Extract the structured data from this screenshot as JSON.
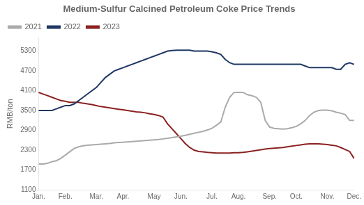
{
  "chart_data": {
    "type": "line",
    "title": "Medium-Sulfur Calcined Petroleum Coke Price Trends",
    "y_label": "RMB/ton",
    "categories": [
      "Jan.",
      null,
      null,
      null,
      null,
      null,
      "Feb.",
      null,
      null,
      null,
      null,
      null,
      null,
      "Mar.",
      null,
      null,
      null,
      null,
      null,
      "Apr.",
      null,
      null,
      null,
      null,
      null,
      null,
      "May",
      null,
      null,
      null,
      null,
      null,
      "Jun.",
      null,
      null,
      null,
      null,
      null,
      null,
      "Jul.",
      null,
      null,
      null,
      null,
      null,
      "Aug.",
      null,
      null,
      null,
      null,
      null,
      null,
      "Sep.",
      null,
      null,
      null,
      null,
      null,
      "Oct.",
      null,
      null,
      null,
      null,
      null,
      null,
      "Nov.",
      null,
      null,
      null,
      null,
      null,
      "Dec."
    ],
    "series": [
      {
        "name": "2021",
        "color": "#aaaaaa",
        "values": [
          1880,
          1880,
          1900,
          1950,
          1980,
          2050,
          2150,
          2250,
          2350,
          2400,
          2430,
          2450,
          2460,
          2470,
          2480,
          2490,
          2500,
          2520,
          2530,
          2540,
          2550,
          2560,
          2570,
          2580,
          2590,
          2600,
          2610,
          2620,
          2640,
          2660,
          2680,
          2700,
          2720,
          2750,
          2780,
          2810,
          2840,
          2870,
          2910,
          2960,
          3050,
          3150,
          3600,
          3900,
          4050,
          4050,
          4050,
          3980,
          3950,
          3900,
          3750,
          3200,
          3000,
          2960,
          2950,
          2940,
          2950,
          2980,
          3020,
          3100,
          3200,
          3350,
          3450,
          3500,
          3510,
          3510,
          3490,
          3450,
          3420,
          3380,
          3200,
          3200
        ]
      },
      {
        "name": "2022",
        "color": "#1f3864",
        "values": [
          3500,
          3500,
          3500,
          3500,
          3550,
          3600,
          3650,
          3650,
          3700,
          3800,
          3900,
          4000,
          4100,
          4200,
          4350,
          4500,
          4600,
          4700,
          4750,
          4800,
          4850,
          4900,
          4950,
          5000,
          5050,
          5100,
          5150,
          5200,
          5250,
          5300,
          5320,
          5330,
          5330,
          5330,
          5330,
          5300,
          5300,
          5300,
          5300,
          5280,
          5250,
          5200,
          5050,
          4950,
          4900,
          4900,
          4900,
          4900,
          4900,
          4900,
          4900,
          4900,
          4900,
          4900,
          4900,
          4900,
          4900,
          4900,
          4900,
          4900,
          4850,
          4800,
          4800,
          4800,
          4800,
          4800,
          4800,
          4750,
          4750,
          4900,
          4950,
          4900
        ]
      },
      {
        "name": "2023",
        "color": "#8b2020",
        "values": [
          4050,
          4000,
          3950,
          3900,
          3850,
          3800,
          3780,
          3750,
          3750,
          3750,
          3720,
          3700,
          3680,
          3650,
          3620,
          3600,
          3580,
          3560,
          3540,
          3520,
          3500,
          3480,
          3460,
          3450,
          3430,
          3400,
          3380,
          3350,
          3300,
          3100,
          2950,
          2800,
          2650,
          2500,
          2380,
          2300,
          2260,
          2250,
          2230,
          2220,
          2210,
          2210,
          2210,
          2210,
          2220,
          2220,
          2230,
          2250,
          2270,
          2290,
          2310,
          2330,
          2350,
          2360,
          2370,
          2380,
          2400,
          2420,
          2440,
          2460,
          2480,
          2490,
          2490,
          2490,
          2480,
          2470,
          2450,
          2430,
          2380,
          2320,
          2260,
          2050
        ]
      }
    ],
    "ylim": [
      1100,
      5700
    ],
    "yticks": [
      1100,
      1700,
      2300,
      2900,
      3500,
      4100,
      4700,
      5300
    ],
    "grid": false,
    "legend": "upper left",
    "marker": "none",
    "line_style": "solid"
  }
}
